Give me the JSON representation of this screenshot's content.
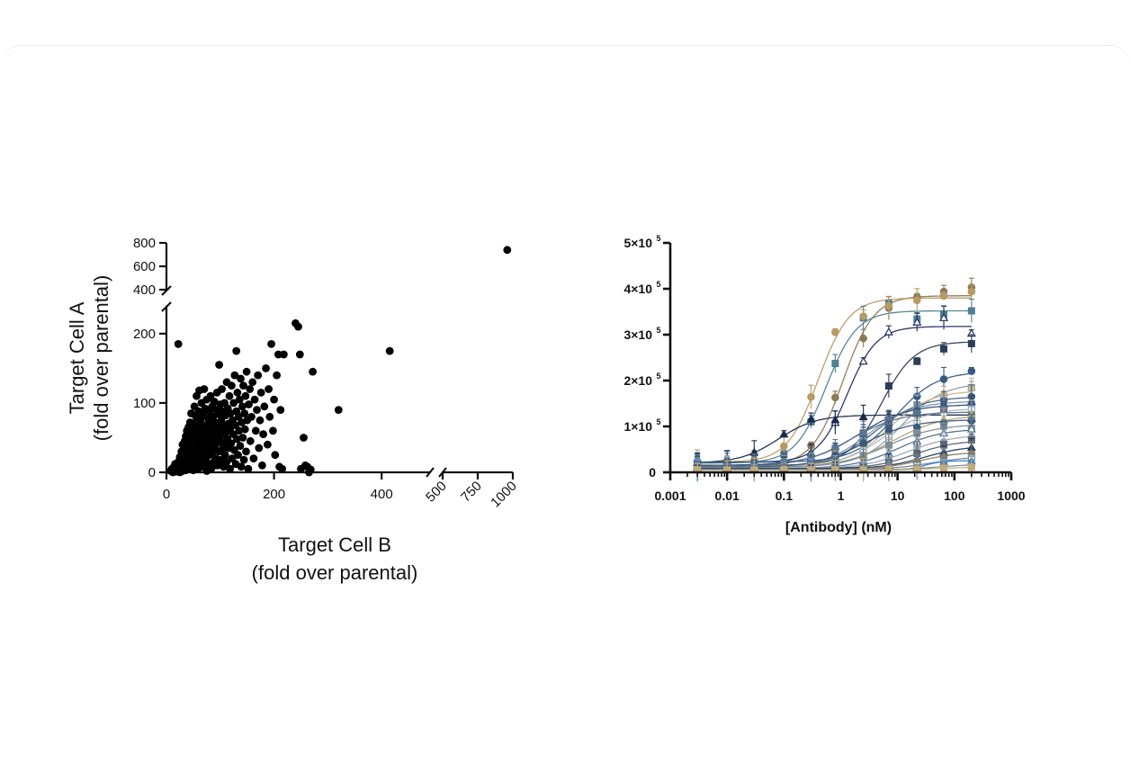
{
  "chart_data": [
    {
      "type": "scatter",
      "xlabel": "Target Cell B",
      "xlabel_sub": "(fold over parental)",
      "ylabel": "Target Cell A",
      "ylabel_sub": "(fold over parental)",
      "x_ticks_lower": [
        "0",
        "200",
        "400"
      ],
      "x_ticks_upper": [
        "500",
        "750",
        "1000"
      ],
      "y_ticks_lower": [
        "0",
        "100",
        "200"
      ],
      "y_ticks_upper": [
        "400",
        "600",
        "800"
      ],
      "x_axis": {
        "lower_range": [
          0,
          490
        ],
        "upper_range": [
          500,
          1000
        ],
        "broken": true
      },
      "y_axis": {
        "lower_range": [
          0,
          240
        ],
        "upper_range": [
          400,
          800
        ],
        "broken": true
      },
      "color": "#000000",
      "points": [
        [
          8,
          2
        ],
        [
          10,
          5
        ],
        [
          12,
          0
        ],
        [
          14,
          8
        ],
        [
          15,
          3
        ],
        [
          16,
          12
        ],
        [
          18,
          1
        ],
        [
          20,
          6
        ],
        [
          22,
          15
        ],
        [
          22,
          3
        ],
        [
          25,
          0
        ],
        [
          25,
          22
        ],
        [
          26,
          10
        ],
        [
          27,
          5
        ],
        [
          28,
          30
        ],
        [
          29,
          17
        ],
        [
          30,
          2
        ],
        [
          30,
          40
        ],
        [
          31,
          12
        ],
        [
          32,
          25
        ],
        [
          33,
          8
        ],
        [
          34,
          45
        ],
        [
          35,
          18
        ],
        [
          36,
          3
        ],
        [
          36,
          52
        ],
        [
          37,
          28
        ],
        [
          38,
          10
        ],
        [
          38,
          60
        ],
        [
          39,
          35
        ],
        [
          40,
          5
        ],
        [
          40,
          20
        ],
        [
          41,
          65
        ],
        [
          42,
          42
        ],
        [
          43,
          14
        ],
        [
          44,
          72
        ],
        [
          45,
          25
        ],
        [
          45,
          50
        ],
        [
          46,
          8
        ],
        [
          46,
          85
        ],
        [
          47,
          32
        ],
        [
          48,
          58
        ],
        [
          49,
          18
        ],
        [
          50,
          70
        ],
        [
          50,
          3
        ],
        [
          51,
          45
        ],
        [
          52,
          95
        ],
        [
          52,
          28
        ],
        [
          53,
          62
        ],
        [
          54,
          12
        ],
        [
          55,
          80
        ],
        [
          55,
          38
        ],
        [
          56,
          110
        ],
        [
          57,
          52
        ],
        [
          58,
          22
        ],
        [
          58,
          68
        ],
        [
          59,
          5
        ],
        [
          60,
          88
        ],
        [
          60,
          42
        ],
        [
          61,
          118
        ],
        [
          62,
          30
        ],
        [
          62,
          58
        ],
        [
          63,
          75
        ],
        [
          64,
          15
        ],
        [
          65,
          48
        ],
        [
          65,
          100
        ],
        [
          66,
          35
        ],
        [
          67,
          64
        ],
        [
          68,
          8
        ],
        [
          68,
          82
        ],
        [
          69,
          25
        ],
        [
          70,
          55
        ],
        [
          70,
          120
        ],
        [
          71,
          40
        ],
        [
          72,
          92
        ],
        [
          73,
          18
        ],
        [
          73,
          68
        ],
        [
          74,
          50
        ],
        [
          75,
          2
        ],
        [
          75,
          105
        ],
        [
          76,
          32
        ],
        [
          77,
          78
        ],
        [
          78,
          60
        ],
        [
          78,
          12
        ],
        [
          79,
          45
        ],
        [
          80,
          88
        ],
        [
          80,
          25
        ],
        [
          81,
          70
        ],
        [
          82,
          110
        ],
        [
          82,
          38
        ],
        [
          83,
          55
        ],
        [
          84,
          6
        ],
        [
          85,
          95
        ],
        [
          85,
          28
        ],
        [
          86,
          65
        ],
        [
          87,
          80
        ],
        [
          88,
          48
        ],
        [
          88,
          15
        ],
        [
          89,
          102
        ],
        [
          90,
          35
        ],
        [
          90,
          72
        ],
        [
          91,
          58
        ],
        [
          92,
          20
        ],
        [
          93,
          90
        ],
        [
          93,
          42
        ],
        [
          94,
          115
        ],
        [
          95,
          10
        ],
        [
          95,
          66
        ],
        [
          96,
          52
        ],
        [
          97,
          84
        ],
        [
          98,
          30
        ],
        [
          98,
          155
        ],
        [
          99,
          62
        ],
        [
          100,
          45
        ],
        [
          100,
          98
        ],
        [
          101,
          18
        ],
        [
          102,
          75
        ],
        [
          103,
          120
        ],
        [
          104,
          55
        ],
        [
          105,
          35
        ],
        [
          105,
          88
        ],
        [
          106,
          8
        ],
        [
          107,
          68
        ],
        [
          108,
          100
        ],
        [
          108,
          40
        ],
        [
          109,
          25
        ],
        [
          110,
          82
        ],
        [
          111,
          58
        ],
        [
          112,
          130
        ],
        [
          112,
          15
        ],
        [
          113,
          48
        ],
        [
          114,
          92
        ],
        [
          115,
          70
        ],
        [
          116,
          35
        ],
        [
          117,
          110
        ],
        [
          118,
          5
        ],
        [
          118,
          62
        ],
        [
          119,
          85
        ],
        [
          120,
          42
        ],
        [
          121,
          125
        ],
        [
          122,
          20
        ],
        [
          123,
          75
        ],
        [
          124,
          55
        ],
        [
          125,
          100
        ],
        [
          126,
          32
        ],
        [
          127,
          140
        ],
        [
          128,
          68
        ],
        [
          129,
          12
        ],
        [
          130,
          88
        ],
        [
          130,
          175
        ],
        [
          131,
          48
        ],
        [
          132,
          115
        ],
        [
          133,
          25
        ],
        [
          134,
          80
        ],
        [
          135,
          60
        ],
        [
          136,
          105
        ],
        [
          137,
          38
        ],
        [
          138,
          135
        ],
        [
          139,
          8
        ],
        [
          140,
          72
        ],
        [
          141,
          95
        ],
        [
          142,
          50
        ],
        [
          143,
          125
        ],
        [
          144,
          18
        ],
        [
          145,
          85
        ],
        [
          146,
          62
        ],
        [
          147,
          110
        ],
        [
          148,
          30
        ],
        [
          149,
          145
        ],
        [
          150,
          75
        ],
        [
          152,
          5
        ],
        [
          153,
          98
        ],
        [
          155,
          120
        ],
        [
          156,
          45
        ],
        [
          158,
          80
        ],
        [
          160,
          130
        ],
        [
          162,
          20
        ],
        [
          164,
          105
        ],
        [
          166,
          60
        ],
        [
          168,
          90
        ],
        [
          170,
          140
        ],
        [
          172,
          35
        ],
        [
          174,
          75
        ],
        [
          176,
          115
        ],
        [
          178,
          10
        ],
        [
          180,
          55
        ],
        [
          182,
          95
        ],
        [
          185,
          150
        ],
        [
          188,
          40
        ],
        [
          190,
          120
        ],
        [
          192,
          80
        ],
        [
          195,
          185
        ],
        [
          198,
          60
        ],
        [
          200,
          105
        ],
        [
          202,
          25
        ],
        [
          205,
          140
        ],
        [
          208,
          170
        ],
        [
          210,
          8
        ],
        [
          212,
          90
        ],
        [
          215,
          5
        ],
        [
          218,
          170
        ],
        [
          22,
          185
        ],
        [
          240,
          215
        ],
        [
          245,
          210
        ],
        [
          248,
          170
        ],
        [
          255,
          50
        ],
        [
          258,
          10
        ],
        [
          262,
          8
        ],
        [
          268,
          4
        ],
        [
          272,
          145
        ],
        [
          265,
          0
        ],
        [
          250,
          5
        ],
        [
          320,
          90
        ],
        [
          415,
          175
        ],
        [
          960,
          740
        ]
      ]
    },
    {
      "type": "line",
      "xlabel": "[Antibody] (nM)",
      "ylabel": "",
      "x_scale": "log",
      "xlim": [
        0.001,
        1000
      ],
      "ylim": [
        0,
        500000
      ],
      "x_tick_labels": [
        "0.001",
        "0.01",
        "0.1",
        "1",
        "10",
        "100",
        "1000"
      ],
      "y_tick_labels": [
        "0",
        "1×10",
        "2×10",
        "3×10",
        "4×10",
        "5×10"
      ],
      "y_tick_exponent": "5",
      "x_concentrations": [
        0.003,
        0.01,
        0.03,
        0.1,
        0.3,
        0.8,
        2.5,
        7,
        22,
        65,
        200
      ],
      "series": [
        {
          "color": "#8c7a58",
          "bottom": 15000,
          "top": 385000,
          "ec50": 1.1,
          "hill": 1.6
        },
        {
          "color": "#4e7f92",
          "bottom": 20000,
          "top": 352000,
          "ec50": 0.55,
          "hill": 1.6
        },
        {
          "color": "#1d2f5c",
          "bottom": 22000,
          "top": 318000,
          "ec50": 1.3,
          "hill": 1.7
        },
        {
          "color": "#b89a64",
          "bottom": 22000,
          "top": 380000,
          "ec50": 0.4,
          "hill": 1.6
        },
        {
          "color": "#2c3e57",
          "bottom": 15000,
          "top": 285000,
          "ec50": 5.2,
          "hill": 1.5
        },
        {
          "color": "#1a2a4c",
          "bottom": 20000,
          "top": 125000,
          "ec50": 0.08,
          "hill": 1.3
        },
        {
          "color": "#345a84",
          "bottom": 22000,
          "top": 220000,
          "ec50": 9.0,
          "hill": 1.2
        },
        {
          "color": "#8a9ba7",
          "bottom": 12000,
          "top": 195000,
          "ec50": 12.0,
          "hill": 1.2
        },
        {
          "color": "#c9b48a",
          "bottom": 14000,
          "top": 178000,
          "ec50": 7.0,
          "hill": 1.2
        },
        {
          "color": "#46607c",
          "bottom": 12000,
          "top": 165000,
          "ec50": 4.0,
          "hill": 1.1
        },
        {
          "color": "#7b94a8",
          "bottom": 10000,
          "top": 155000,
          "ec50": 3.0,
          "hill": 1.1
        },
        {
          "color": "#2b4a70",
          "bottom": 15000,
          "top": 148000,
          "ec50": 2.0,
          "hill": 1.0
        },
        {
          "color": "#a7b6bf",
          "bottom": 10000,
          "top": 140000,
          "ec50": 5.5,
          "hill": 1.1
        },
        {
          "color": "#5c7390",
          "bottom": 12000,
          "top": 132000,
          "ec50": 1.5,
          "hill": 1.0
        },
        {
          "color": "#b6a276",
          "bottom": 10000,
          "top": 125000,
          "ec50": 8.0,
          "hill": 1.0
        },
        {
          "color": "#3c5a78",
          "bottom": 10000,
          "top": 115000,
          "ec50": 2.5,
          "hill": 1.0
        },
        {
          "color": "#7f8d96",
          "bottom": 10000,
          "top": 105000,
          "ec50": 6.5,
          "hill": 1.0
        },
        {
          "color": "#4f6f8f",
          "bottom": 8000,
          "top": 95000,
          "ec50": 10.0,
          "hill": 1.1
        },
        {
          "color": "#9aa9b3",
          "bottom": 8000,
          "top": 82000,
          "ec50": 15.0,
          "hill": 1.1
        },
        {
          "color": "#5a6672",
          "bottom": 8000,
          "top": 70000,
          "ec50": 20.0,
          "hill": 1.2
        },
        {
          "color": "#1e3a63",
          "bottom": 8000,
          "top": 58000,
          "ec50": 30.0,
          "hill": 1.2
        },
        {
          "color": "#8e7d5e",
          "bottom": 6000,
          "top": 45000,
          "ec50": 25.0,
          "hill": 1.2
        },
        {
          "color": "#6f8195",
          "bottom": 6000,
          "top": 35000,
          "ec50": 40.0,
          "hill": 1.2
        },
        {
          "color": "#3a7fd6",
          "bottom": 5000,
          "top": 25000,
          "ec50": 30.0,
          "hill": 3.0
        },
        {
          "color": "#7a8690",
          "bottom": 5000,
          "top": 18000,
          "ec50": 50.0,
          "hill": 1.2
        },
        {
          "color": "#c0ab7c",
          "bottom": 5000,
          "top": 12000,
          "ec50": 60.0,
          "hill": 1.2
        }
      ]
    }
  ]
}
